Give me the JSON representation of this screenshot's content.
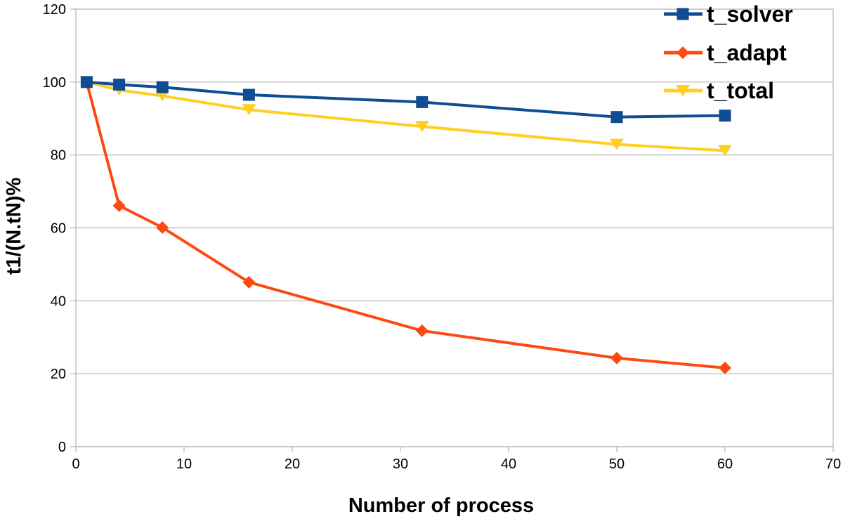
{
  "chart_data": {
    "type": "line",
    "title": "",
    "xlabel": "Number of process",
    "ylabel": "t1/(N.tN)%",
    "xlim": [
      0,
      70
    ],
    "ylim": [
      0,
      120
    ],
    "xticks": [
      "0",
      "10",
      "20",
      "30",
      "40",
      "50",
      "60",
      "70"
    ],
    "yticks": [
      "0",
      "20",
      "40",
      "60",
      "80",
      "100",
      "120"
    ],
    "grid": "horizontal",
    "legend_position": "top-right",
    "x": [
      1,
      4,
      8,
      16,
      32,
      50,
      60
    ],
    "series": [
      {
        "name": "t_solver",
        "color": "#0E4D92",
        "marker": "square",
        "values": [
          100,
          99.3,
          98.6,
          96.5,
          94.5,
          90.4,
          90.8
        ]
      },
      {
        "name": "t_adapt",
        "color": "#FF4912",
        "marker": "diamond",
        "values": [
          100,
          66.1,
          60.1,
          45.1,
          31.8,
          24.3,
          21.6
        ]
      },
      {
        "name": "t_total",
        "color": "#FFCF22",
        "marker": "triangle-down",
        "values": [
          100,
          97.8,
          96.2,
          92.4,
          87.8,
          82.9,
          81.2
        ]
      }
    ]
  }
}
